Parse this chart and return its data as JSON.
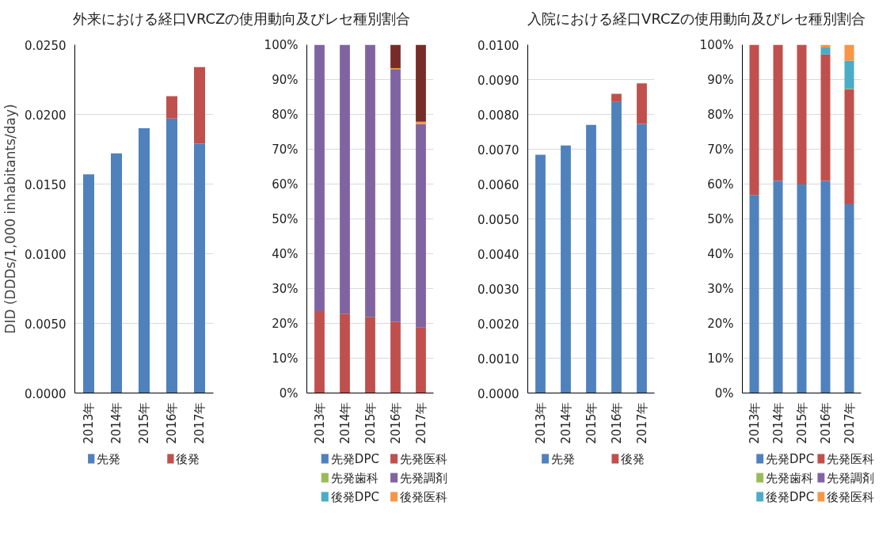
{
  "chart_data": [
    {
      "type": "bar",
      "title": "外来における経口VRCZの使用動向及びレセ種別割合",
      "ylabel": "DID (DDDs/1,000 inhabitants/day)",
      "categories": [
        "2013年",
        "2014年",
        "2015年",
        "2016年",
        "2017年"
      ],
      "stacked": true,
      "ylim": [
        0,
        0.025
      ],
      "yticks": [
        {
          "value": 0,
          "label": "0.0000"
        },
        {
          "value": 0.005,
          "label": "0.0050"
        },
        {
          "value": 0.01,
          "label": "0.0100"
        },
        {
          "value": 0.015,
          "label": "0.0150"
        },
        {
          "value": 0.02,
          "label": "0.0200"
        },
        {
          "value": 0.025,
          "label": "0.0250"
        }
      ],
      "grid": "y",
      "legend": "bottom",
      "series": [
        {
          "name": "先発",
          "color": "#4f81bd",
          "values": [
            0.0157,
            0.0172,
            0.019,
            0.0197,
            0.0179
          ]
        },
        {
          "name": "後発",
          "color": "#c0504d",
          "values": [
            0,
            0,
            0,
            0.0016,
            0.0055
          ]
        }
      ]
    },
    {
      "type": "bar",
      "categories": [
        "2013年",
        "2014年",
        "2015年",
        "2016年",
        "2017年"
      ],
      "stacked": true,
      "ylim": [
        0,
        100
      ],
      "yticks": [
        {
          "value": 0,
          "label": "0%"
        },
        {
          "value": 10,
          "label": "10%"
        },
        {
          "value": 20,
          "label": "20%"
        },
        {
          "value": 30,
          "label": "30%"
        },
        {
          "value": 40,
          "label": "40%"
        },
        {
          "value": 50,
          "label": "50%"
        },
        {
          "value": 60,
          "label": "60%"
        },
        {
          "value": 70,
          "label": "70%"
        },
        {
          "value": 80,
          "label": "80%"
        },
        {
          "value": 90,
          "label": "90%"
        },
        {
          "value": 100,
          "label": "100%"
        }
      ],
      "grid": "y",
      "legend": "bottom",
      "series": [
        {
          "name": "先発DPC",
          "color": "#4f81bd",
          "values": [
            0,
            0,
            0,
            0,
            0
          ]
        },
        {
          "name": "先発医科",
          "color": "#c0504d",
          "values": [
            23.5,
            22.8,
            21.9,
            20.5,
            18.8
          ]
        },
        {
          "name": "先発歯科",
          "color": "#9bbb59",
          "values": [
            0,
            0,
            0,
            0,
            0
          ]
        },
        {
          "name": "先発調剤",
          "color": "#8064a2",
          "values": [
            76.5,
            77.2,
            78.1,
            72.5,
            58.4
          ]
        },
        {
          "name": "後発DPC",
          "color": "#4bacc6",
          "values": [
            0,
            0,
            0,
            0,
            0
          ]
        },
        {
          "name": "後発医科",
          "color": "#f79646",
          "values": [
            0,
            0,
            0,
            0.3,
            0.7
          ]
        },
        {
          "color": "#772c2a",
          "values": [
            0,
            0,
            0,
            6.7,
            22.1
          ]
        }
      ]
    },
    {
      "type": "bar",
      "title": "入院における経口VRCZの使用動向及びレセ種別割合",
      "categories": [
        "2013年",
        "2014年",
        "2015年",
        "2016年",
        "2017年"
      ],
      "stacked": true,
      "ylim": [
        0,
        0.01
      ],
      "yticks": [
        {
          "value": 0,
          "label": "0.0000"
        },
        {
          "value": 0.001,
          "label": "0.0010"
        },
        {
          "value": 0.002,
          "label": "0.0020"
        },
        {
          "value": 0.003,
          "label": "0.0030"
        },
        {
          "value": 0.004,
          "label": "0.0040"
        },
        {
          "value": 0.005,
          "label": "0.0050"
        },
        {
          "value": 0.006,
          "label": "0.0060"
        },
        {
          "value": 0.007,
          "label": "0.0070"
        },
        {
          "value": 0.008,
          "label": "0.0080"
        },
        {
          "value": 0.009,
          "label": "0.0090"
        },
        {
          "value": 0.01,
          "label": "0.0100"
        }
      ],
      "grid": "y",
      "legend": "bottom",
      "series": [
        {
          "name": "先発",
          "color": "#4f81bd",
          "values": [
            0.00684,
            0.00711,
            0.0077,
            0.00836,
            0.00773
          ]
        },
        {
          "name": "後発",
          "color": "#c0504d",
          "values": [
            0,
            0,
            0,
            0.00023,
            0.00116
          ]
        }
      ]
    },
    {
      "type": "bar",
      "categories": [
        "2013年",
        "2014年",
        "2015年",
        "2016年",
        "2017年"
      ],
      "stacked": true,
      "ylim": [
        0,
        100
      ],
      "yticks": [
        {
          "value": 0,
          "label": "0%"
        },
        {
          "value": 10,
          "label": "10%"
        },
        {
          "value": 20,
          "label": "20%"
        },
        {
          "value": 30,
          "label": "30%"
        },
        {
          "value": 40,
          "label": "40%"
        },
        {
          "value": 50,
          "label": "50%"
        },
        {
          "value": 60,
          "label": "60%"
        },
        {
          "value": 70,
          "label": "70%"
        },
        {
          "value": 80,
          "label": "80%"
        },
        {
          "value": 90,
          "label": "90%"
        },
        {
          "value": 100,
          "label": "100%"
        }
      ],
      "grid": "y",
      "legend": "bottom",
      "series": [
        {
          "name": "先発DPC",
          "color": "#4f81bd",
          "values": [
            56.9,
            60.9,
            59.9,
            60.9,
            54.2
          ]
        },
        {
          "name": "先発医科",
          "color": "#c0504d",
          "values": [
            43.1,
            39.1,
            40.1,
            36.3,
            33.0
          ]
        },
        {
          "name": "先発歯科",
          "color": "#9bbb59",
          "values": [
            0,
            0,
            0,
            0,
            0.2
          ]
        },
        {
          "name": "先発調剤",
          "color": "#8064a2",
          "values": [
            0,
            0,
            0,
            0,
            0
          ]
        },
        {
          "name": "後発DPC",
          "color": "#4bacc6",
          "values": [
            0,
            0,
            0,
            2.0,
            8.0
          ]
        },
        {
          "name": "後発医科",
          "color": "#f79646",
          "values": [
            0,
            0,
            0,
            0.8,
            4.6
          ]
        }
      ]
    }
  ]
}
